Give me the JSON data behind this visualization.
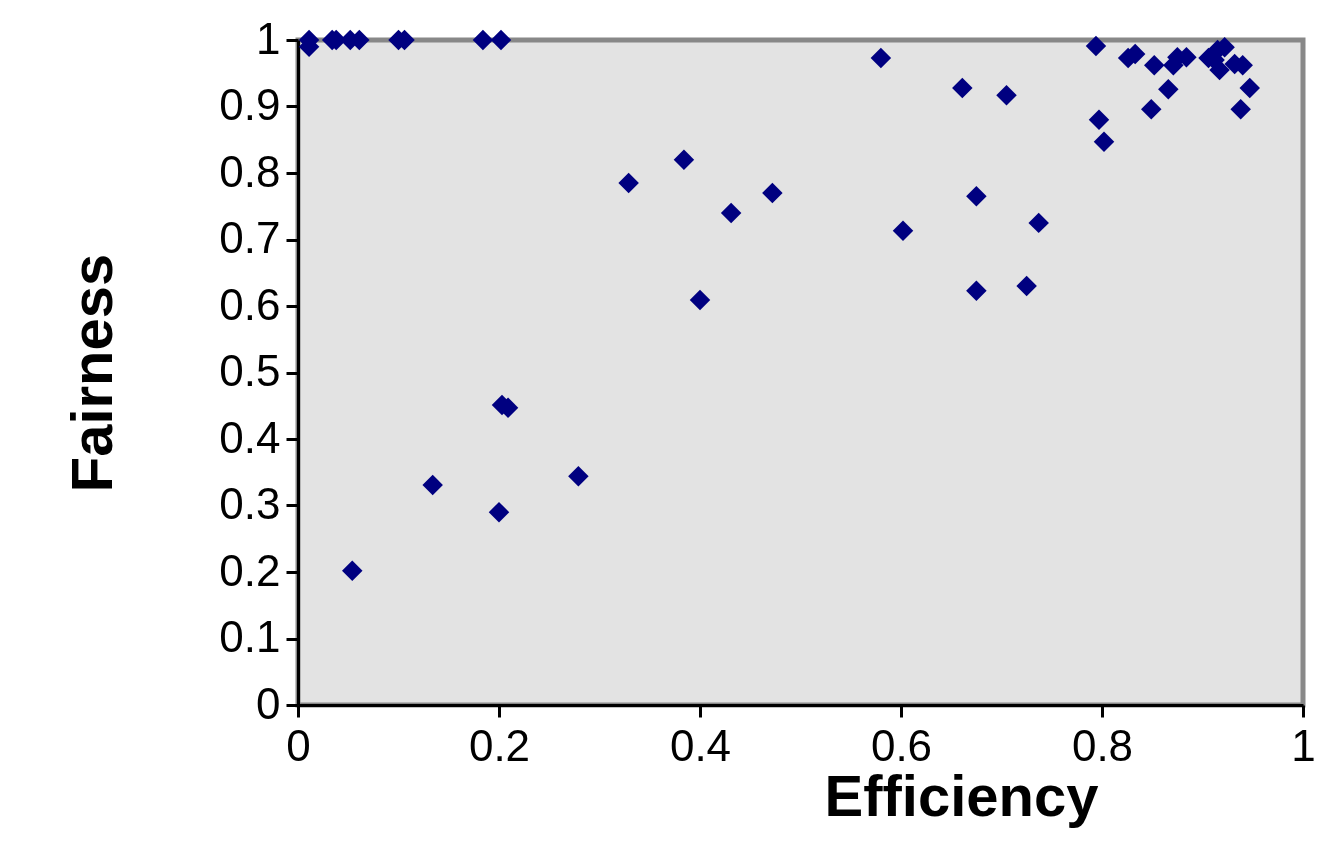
{
  "chart_data": {
    "type": "scatter",
    "xlabel": "Efficiency",
    "ylabel": "Fairness",
    "xlim": [
      0,
      1
    ],
    "ylim": [
      0,
      1
    ],
    "xticks": [
      0,
      0.2,
      0.4,
      0.6,
      0.8,
      1
    ],
    "yticks": [
      0,
      0.1,
      0.2,
      0.3,
      0.4,
      0.5,
      0.6,
      0.7,
      0.8,
      0.9,
      1
    ],
    "grid": false,
    "marker": "diamond",
    "series": [
      {
        "color": "#000080",
        "x": [
          0.011,
          0.011,
          0.034,
          0.038,
          0.052,
          0.061,
          0.1,
          0.106,
          0.184,
          0.202,
          0.58,
          0.661,
          0.705,
          0.384,
          0.329,
          0.431,
          0.472,
          0.602,
          0.675,
          0.737,
          0.675,
          0.725,
          0.4,
          0.203,
          0.209,
          0.279,
          0.134,
          0.2,
          0.054,
          0.794,
          0.797,
          0.802,
          0.826,
          0.833,
          0.852,
          0.849,
          0.866,
          0.871,
          0.875,
          0.884,
          0.906,
          0.912,
          0.915,
          0.917,
          0.922,
          0.932,
          0.94,
          0.947,
          0.938
        ],
        "values": [
          1,
          0.99,
          1,
          1,
          1,
          1,
          1,
          1,
          1,
          1,
          0.973,
          0.928,
          0.917,
          0.82,
          0.785,
          0.74,
          0.77,
          0.713,
          0.765,
          0.725,
          0.623,
          0.63,
          0.609,
          0.451,
          0.447,
          0.344,
          0.331,
          0.29,
          0.202,
          0.991,
          0.88,
          0.847,
          0.973,
          0.979,
          0.962,
          0.896,
          0.926,
          0.962,
          0.974,
          0.974,
          0.973,
          0.97,
          0.985,
          0.955,
          0.989,
          0.964,
          0.962,
          0.928,
          0.896
        ]
      }
    ]
  }
}
